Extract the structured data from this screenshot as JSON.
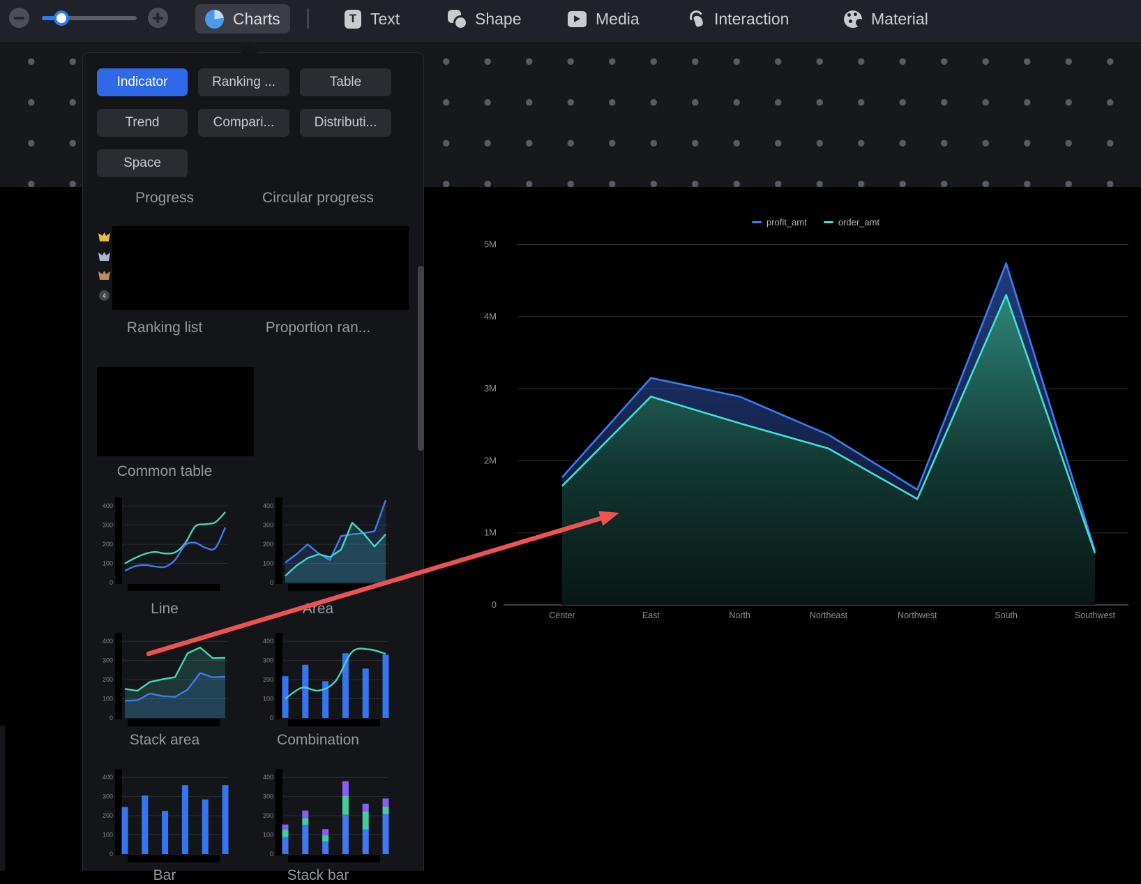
{
  "toolbar": {
    "tabs": [
      {
        "label": "Charts",
        "icon": "pie-chart-icon",
        "active": true
      },
      {
        "label": "Text",
        "icon": "text-icon",
        "active": false
      },
      {
        "label": "Shape",
        "icon": "shape-icon",
        "active": false
      },
      {
        "label": "Media",
        "icon": "media-icon",
        "active": false
      },
      {
        "label": "Interaction",
        "icon": "interaction-icon",
        "active": false
      },
      {
        "label": "Material",
        "icon": "material-icon",
        "active": false
      }
    ],
    "accent_color": "#2f7af0"
  },
  "charts_panel": {
    "categories": [
      {
        "label": "Indicator",
        "active": true
      },
      {
        "label": "Ranking ...",
        "active": false
      },
      {
        "label": "Table",
        "active": false
      },
      {
        "label": "Trend",
        "active": false
      },
      {
        "label": "Compari...",
        "active": false
      },
      {
        "label": "Distributi...",
        "active": false
      },
      {
        "label": "Space",
        "active": false
      }
    ],
    "items": [
      {
        "label": "Progress"
      },
      {
        "label": "Circular progress"
      },
      {
        "label": "Ranking list",
        "ranks": [
          "1",
          "2",
          "3",
          "4"
        ],
        "rank_colors": [
          "#e9b949",
          "#aab8cf",
          "#c08a5f",
          "#43464d"
        ]
      },
      {
        "label": "Proportion ran..."
      },
      {
        "label": "Common table"
      },
      {
        "label": "Line"
      },
      {
        "label": "Area"
      },
      {
        "label": "Stack area"
      },
      {
        "label": "Combination"
      },
      {
        "label": "Bar"
      },
      {
        "label": "Stack bar"
      }
    ]
  },
  "previews": {
    "ticks": [
      400,
      300,
      200,
      100
    ],
    "zero_label": "0",
    "charts": {
      "line": {
        "kind": "line",
        "smooth": true,
        "series": [
          {
            "color": "#47d6b4",
            "values": [
              100,
              128,
              150,
              160,
              152,
              158,
              205,
              293,
              305,
              315,
              368
            ]
          },
          {
            "color": "#3f7bf0",
            "values": [
              62,
              85,
              92,
              84,
              82,
              118,
              196,
              208,
              183,
              180,
              288
            ]
          }
        ]
      },
      "area": {
        "kind": "area",
        "series": [
          {
            "color": "#3f7bf0",
            "values": [
              105,
              148,
              200,
              152,
              118,
              243,
              252,
              258,
              268,
              430
            ]
          },
          {
            "color": "#41d8c6",
            "values": [
              35,
              88,
              128,
              148,
              133,
              172,
              313,
              258,
              188,
              252
            ]
          }
        ]
      },
      "stack_area": {
        "kind": "area",
        "series": [
          {
            "color": "#47d6b4",
            "values": [
              152,
              142,
              188,
              202,
              213,
              338,
              368,
              312,
              314
            ]
          },
          {
            "color": "#3f7bf0",
            "values": [
              90,
              92,
              128,
              114,
              110,
              148,
              235,
              212,
              215
            ]
          }
        ]
      },
      "combination": {
        "kind": "combo",
        "bars": {
          "color": "#3575f0",
          "values": [
            218,
            278,
            192,
            338,
            258,
            330
          ]
        },
        "line": {
          "color": "#47d6b4",
          "values": [
            100,
            158,
            143,
            192,
            345,
            358,
            335
          ]
        }
      },
      "bar": {
        "kind": "bar",
        "bars": {
          "color": "#3575f0",
          "values": [
            245,
            305,
            225,
            360,
            285,
            360
          ]
        }
      },
      "stack_bar": {
        "kind": "stackbar",
        "colors": [
          "#4177f2",
          "#3ecf9a",
          "#8b5cf6"
        ],
        "stacks": [
          [
            88,
            38,
            28
          ],
          [
            152,
            35,
            40
          ],
          [
            65,
            33,
            32
          ],
          [
            205,
            100,
            75
          ],
          [
            128,
            95,
            40
          ],
          [
            208,
            40,
            42
          ]
        ]
      }
    }
  },
  "chart_data": {
    "type": "area",
    "categories": [
      "Center",
      "East",
      "North",
      "Northeast",
      "Northwest",
      "South",
      "Southwest"
    ],
    "series": [
      {
        "name": "profit_amt",
        "color": "#3d7bf5",
        "values": [
          1.77,
          3.15,
          2.89,
          2.36,
          1.6,
          4.74,
          0.75
        ]
      },
      {
        "name": "order_amt",
        "color": "#3fe3d4",
        "values": [
          1.65,
          2.89,
          2.52,
          2.17,
          1.47,
          4.3,
          0.72
        ]
      }
    ],
    "values_unit": "millions",
    "y_ticks": [
      {
        "value": 5,
        "label": "5M"
      },
      {
        "value": 4,
        "label": "4M"
      },
      {
        "value": 3,
        "label": "3M"
      },
      {
        "value": 2,
        "label": "2M"
      },
      {
        "value": 1,
        "label": "1M"
      },
      {
        "value": 0,
        "label": "0"
      }
    ],
    "ylim": [
      0,
      5
    ],
    "grid": true,
    "legend_position": "top"
  },
  "annotation": {
    "shape": "arrow",
    "color": "#ef5350",
    "from": [
      213,
      937
    ],
    "to": [
      888,
      735
    ]
  }
}
